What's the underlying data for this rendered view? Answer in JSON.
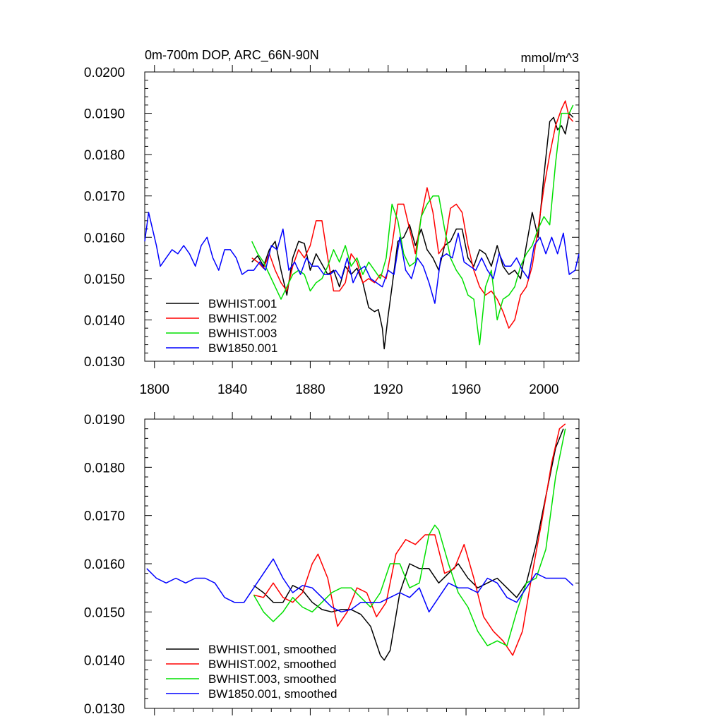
{
  "colors": {
    "black": "#000000",
    "red": "#ff0000",
    "green": "#00e000",
    "blue": "#0000ff"
  },
  "chart_data": [
    {
      "type": "line",
      "title": "0m-700m DOP, ARC_66N-90N",
      "units": "mmol/m^3",
      "xlim": [
        1795,
        2018
      ],
      "ylim": [
        0.013,
        0.02
      ],
      "xticks": [
        1800,
        1840,
        1880,
        1920,
        1960,
        2000
      ],
      "xtick_labels": [
        "1800",
        "1840",
        "1880",
        "1920",
        "1960",
        "2000"
      ],
      "yticks": [
        0.013,
        0.014,
        0.015,
        0.016,
        0.017,
        0.018,
        0.019,
        0.02
      ],
      "ytick_labels": [
        "0.0130",
        "0.0140",
        "0.0150",
        "0.0160",
        "0.0170",
        "0.0180",
        "0.0190",
        "0.0200"
      ],
      "legend": {
        "position": "bottom-left"
      },
      "series": [
        {
          "name": "BWHIST.001",
          "color": "#000000",
          "x": [
            1850,
            1853,
            1856,
            1859,
            1862,
            1865,
            1868,
            1871,
            1874,
            1877,
            1880,
            1883,
            1886,
            1889,
            1892,
            1895,
            1898,
            1901,
            1904,
            1907,
            1910,
            1913,
            1915,
            1917,
            1918,
            1920,
            1922,
            1925,
            1928,
            1931,
            1934,
            1937,
            1940,
            1943,
            1946,
            1949,
            1952,
            1955,
            1958,
            1961,
            1964,
            1967,
            1970,
            1973,
            1976,
            1979,
            1982,
            1985,
            1988,
            1991,
            1994,
            1997,
            2000,
            2003,
            2005,
            2007,
            2009,
            2011,
            2013,
            2015
          ],
          "y": [
            0.0154,
            0.01555,
            0.0153,
            0.0157,
            0.0159,
            0.0152,
            0.0146,
            0.0155,
            0.0159,
            0.01585,
            0.0152,
            0.0156,
            0.01535,
            0.0151,
            0.0152,
            0.0148,
            0.0153,
            0.0151,
            0.01525,
            0.0149,
            0.0143,
            0.0142,
            0.01425,
            0.0138,
            0.0133,
            0.0141,
            0.0148,
            0.0159,
            0.016,
            0.0163,
            0.0158,
            0.0162,
            0.0157,
            0.0155,
            0.0152,
            0.0158,
            0.0159,
            0.0162,
            0.0162,
            0.0155,
            0.0153,
            0.0157,
            0.0156,
            0.0153,
            0.0158,
            0.0153,
            0.0151,
            0.0152,
            0.015,
            0.0158,
            0.0166,
            0.016,
            0.0175,
            0.0188,
            0.0189,
            0.0186,
            0.0187,
            0.0185,
            0.019,
            0.0189
          ]
        },
        {
          "name": "BWHIST.002",
          "color": "#ff0000",
          "x": [
            1850,
            1853,
            1856,
            1859,
            1862,
            1865,
            1868,
            1871,
            1874,
            1877,
            1880,
            1883,
            1886,
            1889,
            1892,
            1895,
            1898,
            1901,
            1904,
            1907,
            1910,
            1913,
            1916,
            1919,
            1922,
            1925,
            1928,
            1931,
            1934,
            1937,
            1940,
            1943,
            1946,
            1949,
            1952,
            1955,
            1958,
            1961,
            1964,
            1967,
            1970,
            1973,
            1976,
            1979,
            1982,
            1985,
            1988,
            1991,
            1994,
            1997,
            2000,
            2003,
            2006,
            2009,
            2011,
            2013,
            2015
          ],
          "y": [
            0.0155,
            0.0154,
            0.01525,
            0.0156,
            0.0152,
            0.0149,
            0.0147,
            0.0153,
            0.0157,
            0.0155,
            0.0158,
            0.0164,
            0.0164,
            0.0155,
            0.0147,
            0.0147,
            0.0149,
            0.0156,
            0.0154,
            0.0149,
            0.015,
            0.0149,
            0.0151,
            0.015,
            0.0158,
            0.0168,
            0.0168,
            0.0162,
            0.0156,
            0.0165,
            0.0172,
            0.0166,
            0.0156,
            0.0158,
            0.0167,
            0.0168,
            0.0166,
            0.0158,
            0.0152,
            0.0148,
            0.0146,
            0.0147,
            0.0145,
            0.0142,
            0.0138,
            0.014,
            0.0146,
            0.0148,
            0.0153,
            0.0162,
            0.0172,
            0.018,
            0.0187,
            0.0191,
            0.0193,
            0.0189,
            0.0188
          ]
        },
        {
          "name": "BWHIST.003",
          "color": "#00e000",
          "x": [
            1850,
            1853,
            1856,
            1859,
            1862,
            1865,
            1868,
            1871,
            1874,
            1877,
            1880,
            1883,
            1886,
            1889,
            1892,
            1895,
            1898,
            1901,
            1904,
            1907,
            1910,
            1913,
            1916,
            1919,
            1922,
            1925,
            1928,
            1931,
            1934,
            1937,
            1940,
            1943,
            1946,
            1949,
            1952,
            1955,
            1958,
            1961,
            1964,
            1967,
            1970,
            1973,
            1976,
            1979,
            1982,
            1985,
            1988,
            1991,
            1994,
            1997,
            2000,
            2003,
            2006,
            2009,
            2011,
            2013,
            2015
          ],
          "y": [
            0.0159,
            0.0156,
            0.0154,
            0.0151,
            0.0148,
            0.0145,
            0.0148,
            0.0151,
            0.0152,
            0.0151,
            0.0147,
            0.0149,
            0.015,
            0.0153,
            0.0157,
            0.0154,
            0.0158,
            0.0153,
            0.0155,
            0.0151,
            0.0154,
            0.0152,
            0.015,
            0.0155,
            0.0168,
            0.0164,
            0.0156,
            0.0153,
            0.0154,
            0.0165,
            0.0168,
            0.017,
            0.017,
            0.0162,
            0.0155,
            0.0152,
            0.015,
            0.0146,
            0.0145,
            0.0134,
            0.0148,
            0.0152,
            0.014,
            0.0145,
            0.0146,
            0.0148,
            0.0153,
            0.0156,
            0.0158,
            0.0162,
            0.0165,
            0.0163,
            0.0178,
            0.019,
            0.019,
            0.019,
            0.0192
          ]
        },
        {
          "name": "BW1850.001",
          "color": "#0000ff",
          "x": [
            1795,
            1797,
            1799,
            1801,
            1803,
            1806,
            1809,
            1812,
            1815,
            1818,
            1821,
            1824,
            1827,
            1830,
            1833,
            1836,
            1839,
            1842,
            1845,
            1848,
            1851,
            1854,
            1857,
            1860,
            1863,
            1866,
            1869,
            1872,
            1875,
            1878,
            1881,
            1884,
            1887,
            1890,
            1893,
            1896,
            1899,
            1902,
            1905,
            1908,
            1911,
            1914,
            1917,
            1920,
            1923,
            1926,
            1929,
            1932,
            1935,
            1938,
            1941,
            1944,
            1947,
            1950,
            1953,
            1956,
            1959,
            1962,
            1965,
            1968,
            1971,
            1974,
            1977,
            1980,
            1983,
            1986,
            1989,
            1992,
            1995,
            1998,
            2001,
            2004,
            2007,
            2010,
            2013,
            2016,
            2018
          ],
          "y": [
            0.0159,
            0.0166,
            0.0162,
            0.0158,
            0.0153,
            0.0155,
            0.0157,
            0.0156,
            0.0158,
            0.0156,
            0.0153,
            0.0158,
            0.016,
            0.0155,
            0.0152,
            0.0157,
            0.0157,
            0.0155,
            0.0151,
            0.0152,
            0.0152,
            0.0154,
            0.0152,
            0.0158,
            0.0157,
            0.0162,
            0.0152,
            0.0154,
            0.0151,
            0.0155,
            0.0153,
            0.0153,
            0.0151,
            0.0151,
            0.0152,
            0.015,
            0.0155,
            0.0149,
            0.0152,
            0.0153,
            0.015,
            0.0149,
            0.0148,
            0.0152,
            0.0151,
            0.016,
            0.0152,
            0.015,
            0.0155,
            0.0153,
            0.0149,
            0.0144,
            0.0155,
            0.0156,
            0.0155,
            0.0161,
            0.0154,
            0.0153,
            0.0152,
            0.0155,
            0.0152,
            0.015,
            0.0156,
            0.0153,
            0.0153,
            0.0155,
            0.0152,
            0.015,
            0.0158,
            0.016,
            0.0156,
            0.016,
            0.0156,
            0.0161,
            0.0151,
            0.0152,
            0.0156
          ]
        }
      ]
    },
    {
      "type": "line",
      "xlim": [
        1795,
        2018
      ],
      "ylim": [
        0.013,
        0.019
      ],
      "xticks": [
        1800,
        1840,
        1880,
        1920,
        1960,
        2000
      ],
      "yticks": [
        0.013,
        0.014,
        0.015,
        0.016,
        0.017,
        0.018,
        0.019
      ],
      "ytick_labels": [
        "0.0130",
        "0.0140",
        "0.0150",
        "0.0160",
        "0.0170",
        "0.0180",
        "0.0190"
      ],
      "legend": {
        "position": "bottom-left"
      },
      "series": [
        {
          "name": "BWHIST.001, smoothed",
          "color": "#000000",
          "x": [
            1851,
            1856,
            1861,
            1866,
            1871,
            1876,
            1881,
            1886,
            1891,
            1896,
            1901,
            1906,
            1911,
            1916,
            1918,
            1921,
            1926,
            1931,
            1936,
            1941,
            1946,
            1951,
            1956,
            1961,
            1966,
            1971,
            1976,
            1981,
            1986,
            1991,
            1996,
            2001,
            2006,
            2010
          ],
          "y": [
            0.01555,
            0.0154,
            0.0152,
            0.0152,
            0.01555,
            0.01545,
            0.0152,
            0.01505,
            0.015,
            0.01505,
            0.01505,
            0.01495,
            0.0147,
            0.0141,
            0.014,
            0.0142,
            0.0154,
            0.016,
            0.0159,
            0.0159,
            0.0156,
            0.0158,
            0.016,
            0.0157,
            0.0155,
            0.0156,
            0.0157,
            0.0155,
            0.0153,
            0.0156,
            0.0164,
            0.0174,
            0.0184,
            0.0188
          ]
        },
        {
          "name": "BWHIST.002, smoothed",
          "color": "#ff0000",
          "x": [
            1851,
            1856,
            1861,
            1866,
            1871,
            1876,
            1881,
            1884,
            1889,
            1894,
            1899,
            1904,
            1909,
            1914,
            1919,
            1924,
            1929,
            1934,
            1939,
            1944,
            1949,
            1954,
            1959,
            1964,
            1969,
            1974,
            1979,
            1984,
            1989,
            1994,
            1999,
            2004,
            2008,
            2011
          ],
          "y": [
            0.01535,
            0.0153,
            0.0156,
            0.0153,
            0.0152,
            0.0154,
            0.016,
            0.0162,
            0.0157,
            0.0147,
            0.015,
            0.0155,
            0.0154,
            0.0149,
            0.0152,
            0.0162,
            0.0165,
            0.0164,
            0.0166,
            0.0166,
            0.0158,
            0.0159,
            0.0164,
            0.0157,
            0.0149,
            0.0146,
            0.0144,
            0.0141,
            0.0146,
            0.0158,
            0.0169,
            0.0181,
            0.0188,
            0.0189
          ]
        },
        {
          "name": "BWHIST.003, smoothed",
          "color": "#00e000",
          "x": [
            1851,
            1856,
            1861,
            1866,
            1871,
            1876,
            1881,
            1886,
            1891,
            1896,
            1901,
            1906,
            1911,
            1916,
            1921,
            1926,
            1931,
            1936,
            1941,
            1944,
            1946,
            1951,
            1956,
            1961,
            1966,
            1971,
            1976,
            1981,
            1986,
            1991,
            1996,
            2001,
            2006,
            2011
          ],
          "y": [
            0.01535,
            0.015,
            0.0148,
            0.015,
            0.0153,
            0.0151,
            0.015,
            0.0152,
            0.0154,
            0.0155,
            0.0155,
            0.0153,
            0.0151,
            0.0154,
            0.016,
            0.016,
            0.0155,
            0.0156,
            0.0166,
            0.0168,
            0.0167,
            0.016,
            0.0154,
            0.0151,
            0.0146,
            0.0143,
            0.0144,
            0.0143,
            0.015,
            0.0156,
            0.0157,
            0.0163,
            0.0178,
            0.0188
          ]
        },
        {
          "name": "BW1850.001, smoothed",
          "color": "#0000ff",
          "x": [
            1796,
            1801,
            1806,
            1811,
            1816,
            1821,
            1826,
            1831,
            1836,
            1841,
            1846,
            1851,
            1856,
            1861,
            1866,
            1871,
            1876,
            1881,
            1886,
            1891,
            1896,
            1901,
            1906,
            1911,
            1916,
            1921,
            1926,
            1931,
            1936,
            1941,
            1946,
            1951,
            1956,
            1961,
            1966,
            1971,
            1976,
            1981,
            1986,
            1991,
            1996,
            2001,
            2006,
            2011,
            2015
          ],
          "y": [
            0.0159,
            0.0157,
            0.0156,
            0.0157,
            0.0156,
            0.0157,
            0.0157,
            0.0156,
            0.0153,
            0.0152,
            0.0152,
            0.0155,
            0.0158,
            0.0161,
            0.0157,
            0.0154,
            0.01555,
            0.0155,
            0.0153,
            0.0151,
            0.015,
            0.01505,
            0.0152,
            0.0152,
            0.0152,
            0.0153,
            0.0154,
            0.0153,
            0.0155,
            0.015,
            0.0153,
            0.0156,
            0.0155,
            0.0155,
            0.0154,
            0.0157,
            0.0156,
            0.0153,
            0.0152,
            0.0155,
            0.0158,
            0.0157,
            0.0157,
            0.0157,
            0.01555
          ]
        }
      ]
    }
  ]
}
